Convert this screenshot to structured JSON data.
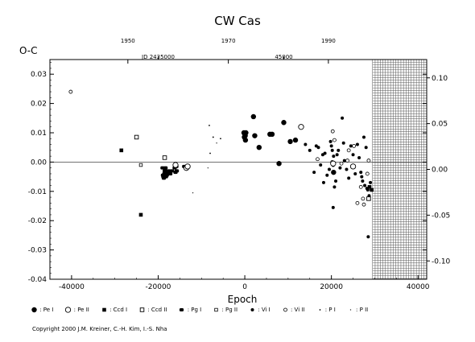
{
  "chart_data": {
    "type": "scatter",
    "title": "CW  Cas",
    "xlabel": "Epoch",
    "ylabel": "O-C",
    "xlim": [
      -45000,
      42000
    ],
    "ylim": [
      -0.04,
      0.035
    ],
    "y2lim": [
      -0.12,
      0.12
    ],
    "x_ticks": [
      "-40000",
      "-20000",
      "0",
      "20000",
      "40000"
    ],
    "y_ticks": [
      "0.03",
      "0.02",
      "0.01",
      "0.00",
      "-0.01",
      "-0.02",
      "-0.03",
      "-0.04"
    ],
    "y2_ticks": [
      "0.10",
      "0.05",
      "0.00",
      "-0.05",
      "-0.10"
    ],
    "top_year_ticks": [
      {
        "label": "1950",
        "epoch": -27000
      },
      {
        "label": "1970",
        "epoch": -3800
      },
      {
        "label": "1990",
        "epoch": 19300
      }
    ],
    "jd_labels": [
      {
        "label": "JD 2435000",
        "epoch": -20000
      },
      {
        "label": "45000",
        "epoch": 9000
      }
    ],
    "hatched_from_epoch": 29500,
    "legend": [
      {
        "marker": "pe1",
        "label": ": Pe I"
      },
      {
        "marker": "pe2",
        "label": ": Pe II"
      },
      {
        "marker": "ccd1",
        "label": ": Ccd I"
      },
      {
        "marker": "ccd2",
        "label": ": Ccd II"
      },
      {
        "marker": "pg1",
        "label": ": Pg I"
      },
      {
        "marker": "pg2",
        "label": ": Pg II"
      },
      {
        "marker": "vi1",
        "label": ": Vi I"
      },
      {
        "marker": "vi2",
        "label": ": Vi II"
      },
      {
        "marker": "p1",
        "label": ": P I"
      },
      {
        "marker": "p2",
        "label": ": P II"
      }
    ],
    "series": [
      {
        "marker": "vi2",
        "points": [
          [
            -40200,
            0.024
          ]
        ]
      },
      {
        "marker": "ccd1",
        "points": [
          [
            -28500,
            0.004
          ]
        ]
      },
      {
        "marker": "ccd1",
        "points": [
          [
            -24000,
            -0.018
          ]
        ]
      },
      {
        "marker": "ccd2",
        "points": [
          [
            -25000,
            0.0085
          ],
          [
            -18500,
            0.0015
          ]
        ]
      },
      {
        "marker": "pg2",
        "points": [
          [
            -24000,
            -0.001
          ]
        ]
      },
      {
        "marker": "pg1",
        "points": [
          [
            -19000,
            -0.002
          ],
          [
            -18900,
            -0.0045
          ],
          [
            -18800,
            -0.005
          ],
          [
            -18700,
            -0.0055
          ],
          [
            -18600,
            -0.004
          ],
          [
            -18500,
            -0.003
          ],
          [
            -18400,
            -0.0025
          ],
          [
            -18300,
            -0.002
          ],
          [
            -18200,
            -0.005
          ],
          [
            -18000,
            -0.0045
          ],
          [
            -17800,
            -0.0035
          ],
          [
            -17500,
            -0.003
          ],
          [
            -17200,
            -0.004
          ],
          [
            -16800,
            -0.003
          ],
          [
            -16200,
            -0.002
          ],
          [
            -16000,
            -0.0035
          ],
          [
            -15800,
            -0.0015
          ],
          [
            -15700,
            -0.003
          ],
          [
            -14000,
            -0.0015
          ],
          [
            -13600,
            -0.0015
          ],
          [
            -13300,
            -0.0018
          ]
        ]
      },
      {
        "marker": "pe2",
        "points": [
          [
            -16000,
            -0.001
          ],
          [
            -13500,
            -0.002
          ],
          [
            -13200,
            -0.0015
          ],
          [
            13000,
            0.012
          ]
        ]
      },
      {
        "marker": "p1",
        "points": [
          [
            -8200,
            0.0125
          ],
          [
            -7300,
            0.0085
          ],
          [
            -5600,
            0.008
          ],
          [
            -8000,
            0.003
          ]
        ]
      },
      {
        "marker": "p2",
        "points": [
          [
            -12000,
            -0.0105
          ],
          [
            -8500,
            -0.002
          ],
          [
            -6500,
            0.0065
          ]
        ]
      },
      {
        "marker": "pe1",
        "points": [
          [
            -200,
            0.01
          ],
          [
            -100,
            0.0085
          ],
          [
            0,
            0.0095
          ],
          [
            100,
            0.009
          ],
          [
            150,
            0.0075
          ],
          [
            250,
            0.01
          ],
          [
            2000,
            0.0155
          ],
          [
            2300,
            0.009
          ],
          [
            3300,
            0.005
          ],
          [
            5800,
            0.0095
          ],
          [
            6300,
            0.0095
          ],
          [
            7900,
            -0.0005
          ],
          [
            9000,
            0.0135
          ],
          [
            10500,
            0.007
          ],
          [
            11700,
            0.0075
          ]
        ]
      },
      {
        "marker": "vi1",
        "points": [
          [
            14000,
            0.006
          ],
          [
            15000,
            0.004
          ],
          [
            16000,
            -0.0035
          ],
          [
            16500,
            0.0055
          ],
          [
            17000,
            0.005
          ],
          [
            17500,
            -0.001
          ],
          [
            18000,
            0.0025
          ],
          [
            18500,
            0.003
          ],
          [
            18200,
            -0.007
          ],
          [
            19000,
            -0.0045
          ],
          [
            19500,
            -0.0025
          ],
          [
            19800,
            0.007
          ],
          [
            20000,
            0.0055
          ],
          [
            20200,
            0.004
          ],
          [
            20500,
            0.002
          ],
          [
            20400,
            -0.0155
          ],
          [
            20700,
            -0.0085
          ],
          [
            21000,
            -0.0065
          ],
          [
            21300,
            0.0025
          ],
          [
            21600,
            0.004
          ],
          [
            22000,
            -0.002
          ],
          [
            22500,
            0.015
          ],
          [
            22800,
            0.0065
          ],
          [
            23000,
            0.0005
          ],
          [
            23500,
            -0.0025
          ],
          [
            24000,
            -0.0055
          ],
          [
            24500,
            0.0055
          ],
          [
            25000,
            0.0025
          ],
          [
            25500,
            -0.004
          ],
          [
            26000,
            0.006
          ],
          [
            26400,
            0.0015
          ],
          [
            26800,
            -0.0035
          ],
          [
            27000,
            -0.005
          ],
          [
            27200,
            -0.0065
          ],
          [
            27500,
            0.0085
          ],
          [
            27700,
            -0.008
          ],
          [
            28000,
            0.005
          ],
          [
            28200,
            -0.009
          ],
          [
            28400,
            -0.0095
          ],
          [
            28500,
            -0.0255
          ],
          [
            28700,
            -0.0115
          ],
          [
            29000,
            -0.007
          ],
          [
            29200,
            -0.0095
          ]
        ]
      },
      {
        "marker": "pe1",
        "points": [
          [
            20500,
            -0.0035
          ]
        ]
      },
      {
        "marker": "ccd1",
        "points": [
          [
            28800,
            -0.0085
          ],
          [
            29300,
            -0.0095
          ]
        ]
      },
      {
        "marker": "ccd2",
        "points": [
          [
            28600,
            -0.0125
          ]
        ]
      },
      {
        "marker": "vi2",
        "points": [
          [
            16800,
            0.001
          ],
          [
            20300,
            0.0105
          ],
          [
            20700,
            0.0075
          ],
          [
            22300,
            -0.0005
          ],
          [
            23700,
            0.0005
          ],
          [
            24000,
            0.004
          ],
          [
            25200,
            0.0055
          ],
          [
            26000,
            -0.014
          ],
          [
            26800,
            -0.0085
          ],
          [
            27300,
            -0.0125
          ],
          [
            27500,
            -0.0145
          ],
          [
            28300,
            -0.004
          ],
          [
            28600,
            0.0005
          ],
          [
            20200,
            0.0
          ],
          [
            20400,
            -0.001
          ]
        ]
      },
      {
        "marker": "pe2",
        "points": [
          [
            20400,
            -0.0005
          ],
          [
            25000,
            -0.0015
          ]
        ]
      }
    ]
  },
  "copyright": "Copyright 2000 J.M. Kreiner, C.-H. Kim, I.-S. Nha"
}
